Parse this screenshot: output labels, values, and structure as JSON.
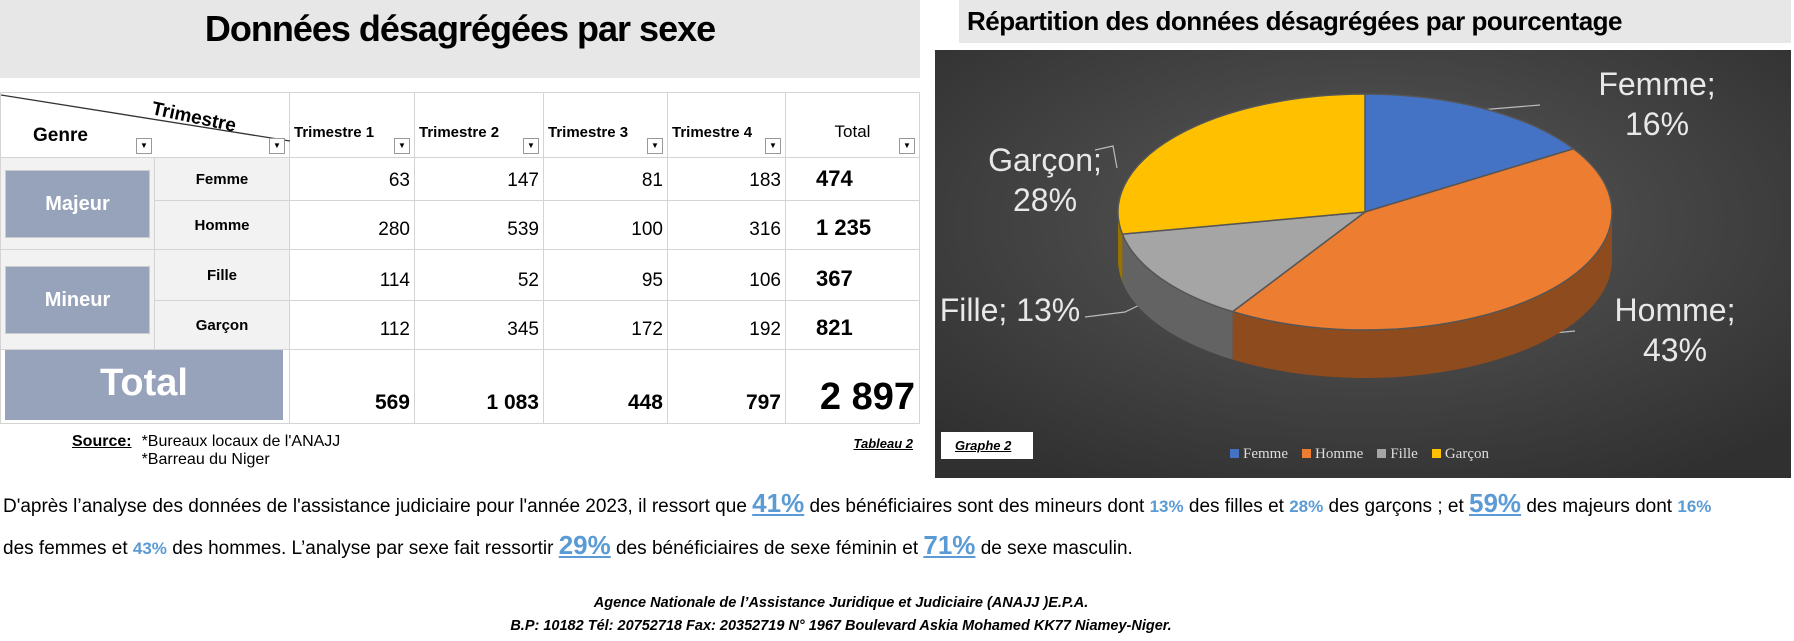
{
  "header": {
    "title": "Données désagrégées par sexe"
  },
  "table": {
    "corner": {
      "row": "Genre",
      "col": "Trimestre"
    },
    "columns": [
      "Trimestre 1",
      "Trimestre 2",
      "Trimestre 3",
      "Trimestre 4",
      "Total"
    ],
    "groups": [
      {
        "label": "Majeur",
        "rows": [
          {
            "label": "Femme",
            "cells": [
              "63",
              "147",
              "81",
              "183",
              "474"
            ]
          },
          {
            "label": "Homme",
            "cells": [
              "280",
              "539",
              "100",
              "316",
              "1 235"
            ]
          }
        ]
      },
      {
        "label": "Mineur",
        "rows": [
          {
            "label": "Fille",
            "cells": [
              "114",
              "52",
              "95",
              "106",
              "367"
            ]
          },
          {
            "label": "Garçon",
            "cells": [
              "112",
              "345",
              "172",
              "192",
              "821"
            ]
          }
        ]
      }
    ],
    "total": {
      "label": "Total",
      "cells": [
        "569",
        "1 083",
        "448",
        "797",
        "2 897"
      ]
    }
  },
  "source": {
    "label": "Source:",
    "lines": [
      "*Bureaux locaux de l'ANAJJ",
      "*Barreau du Niger"
    ],
    "caption": "Tableau 2"
  },
  "chart_data": {
    "type": "pie",
    "title": "Répartition des données désagrégées par pourcentage",
    "caption": "Graphe 2",
    "categories": [
      "Femme",
      "Homme",
      "Fille",
      "Garçon"
    ],
    "values": [
      16,
      43,
      13,
      28
    ],
    "value_labels": [
      "Femme; 16%",
      "Homme; 43%",
      "Fille; 13%",
      "Garçon; 28%"
    ],
    "colors": [
      "#4472c4",
      "#ed7d31",
      "#a5a5a5",
      "#ffc000"
    ],
    "legend": "bottom"
  },
  "paragraph": [
    {
      "t": "D'après l’analyse des données de l'assistance judiciaire pour l'année 2023, il ressort que "
    },
    {
      "big": "41%"
    },
    {
      "t": " des bénéficiaires sont des mineurs dont "
    },
    {
      "small": "13%"
    },
    {
      "t": " des filles et "
    },
    {
      "small": "28%"
    },
    {
      "t": " des garçons ; et "
    },
    {
      "big": "59%"
    },
    {
      "t": " des majeurs dont "
    },
    {
      "small": "16%"
    },
    {
      "t": " des femmes et "
    },
    {
      "small": "43%"
    },
    {
      "t": " des hommes. L’analyse par sexe fait ressortir "
    },
    {
      "big": "29%"
    },
    {
      "t": " des bénéficiaires de sexe féminin et "
    },
    {
      "big": "71%"
    },
    {
      "t": " de sexe masculin."
    }
  ],
  "footer": {
    "lines": [
      "Agence Nationale de l’Assistance Juridique et Judiciaire (ANAJJ )E.P.A.",
      "B.P: 10182 Tél: 20752718 Fax: 20352719 N° 1967 Boulevard Askia Mohamed KK77 Niamey-Niger."
    ]
  }
}
